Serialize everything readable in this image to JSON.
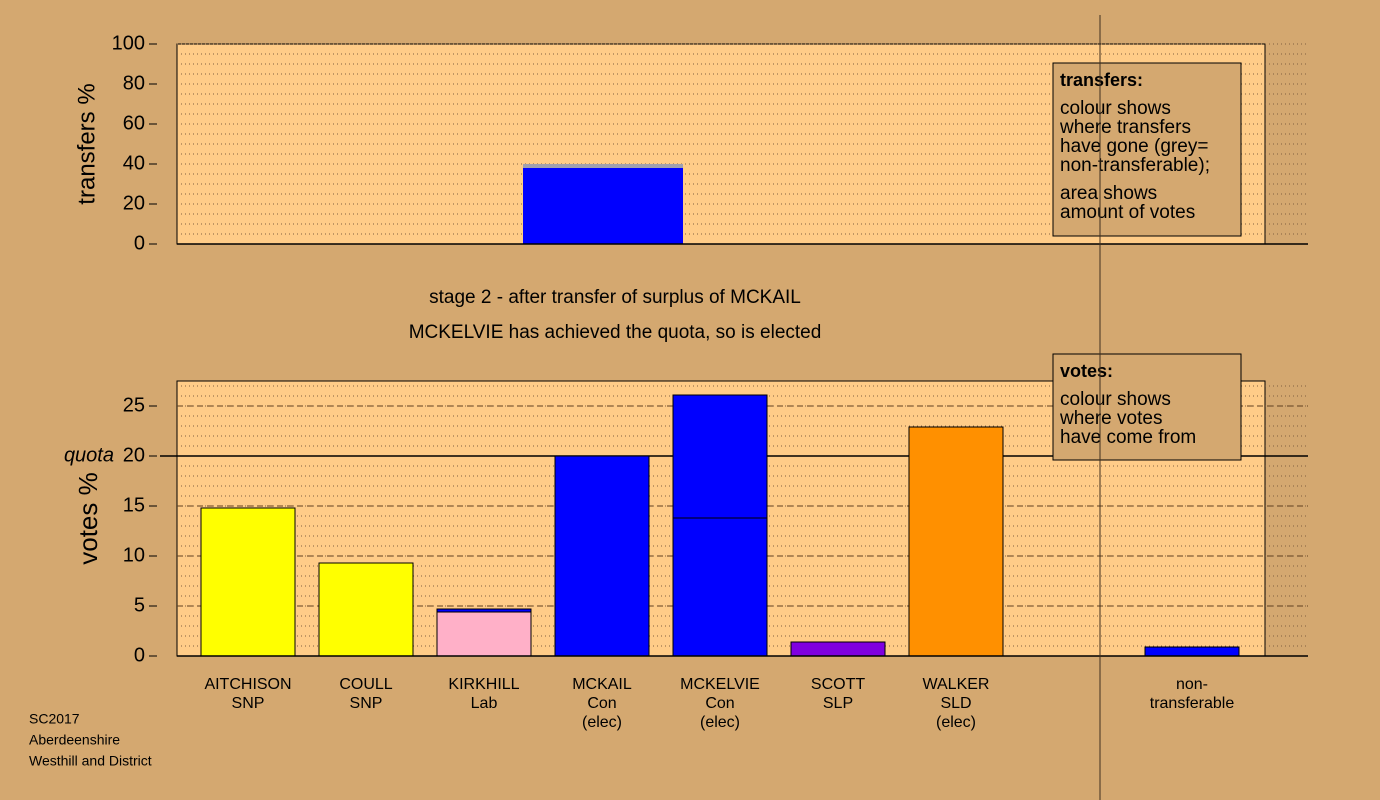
{
  "chart_data": [
    {
      "type": "bar",
      "ylabel": "transfers %",
      "ylim": [
        0,
        100
      ],
      "yticks": [
        0,
        20,
        40,
        60,
        80,
        100
      ],
      "minor_step": 5,
      "series": [
        {
          "color": "#0000ff",
          "values": [
            38
          ]
        },
        {
          "color": "#a0a0b0",
          "values": [
            2
          ]
        }
      ],
      "legend": {
        "title": "transfers:",
        "lines": [
          "colour shows",
          "where transfers",
          "have gone (grey=",
          "non-transferable);"
        ],
        "lines2": [
          "area shows",
          "amount of votes"
        ]
      }
    },
    {
      "type": "bar",
      "ylabel": "votes %",
      "ylim": [
        0,
        27.5
      ],
      "yticks": [
        0,
        5,
        10,
        15,
        20,
        25
      ],
      "minor_step": 1,
      "quota": 20,
      "quota_label": "quota",
      "categories": [
        [
          "AITCHISON",
          "SNP"
        ],
        [
          "COULL",
          "SNP"
        ],
        [
          "KIRKHILL",
          "Lab"
        ],
        [
          "MCKAIL",
          "Con",
          "(elec)"
        ],
        [
          "MCKELVIE",
          "Con",
          "(elec)"
        ],
        [
          "SCOTT",
          "SLP"
        ],
        [
          "WALKER",
          "SLD",
          "(elec)"
        ],
        null,
        [
          "non-",
          "transferable"
        ]
      ],
      "series": [
        {
          "colors": [
            "#ffff00",
            "#ffff00",
            "#ffb0c8",
            "#0000ff",
            "#0000ff",
            "#8000e0",
            "#ff9000",
            null,
            "#0000ff"
          ],
          "values": [
            14.8,
            9.3,
            4.4,
            20,
            13.8,
            1.4,
            22.9,
            null,
            0.9
          ]
        },
        {
          "color": "#0000ff",
          "values": [
            0,
            0,
            0.3,
            0,
            12.3,
            0,
            0,
            null,
            0
          ]
        }
      ],
      "legend": {
        "title": "votes:",
        "lines": [
          "colour shows",
          "where votes",
          "have come from"
        ]
      }
    }
  ],
  "stage": [
    "stage 2 - after transfer of surplus of MCKAIL",
    "MCKELVIE has achieved the quota, so is elected"
  ],
  "footer": [
    "SC2017",
    "Aberdeenshire",
    "Westhill and District"
  ]
}
